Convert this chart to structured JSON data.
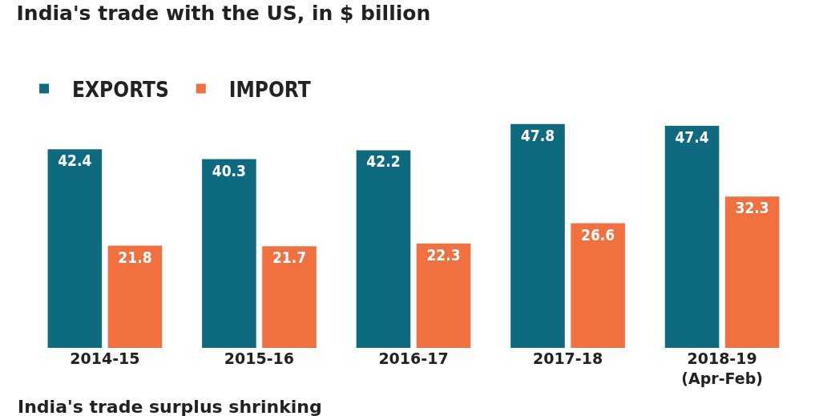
{
  "chart_data": {
    "type": "bar",
    "title": "India's trade with the US, in $ billion",
    "categories": [
      "2014-15",
      "2015-16",
      "2016-17",
      "2017-18",
      "2018-19\n(Apr-Feb)"
    ],
    "series": [
      {
        "name": "EXPORTS",
        "color": "#0e6a7e",
        "values": [
          42.4,
          40.3,
          42.2,
          47.8,
          47.4
        ]
      },
      {
        "name": "IMPORT",
        "color": "#f07040",
        "values": [
          21.8,
          21.7,
          22.3,
          26.6,
          32.3
        ]
      }
    ],
    "data_labels": true,
    "legend": "top left",
    "tick_labels": "x",
    "grid": false,
    "annotations": [
      "India's trade surplus shrinking"
    ]
  }
}
